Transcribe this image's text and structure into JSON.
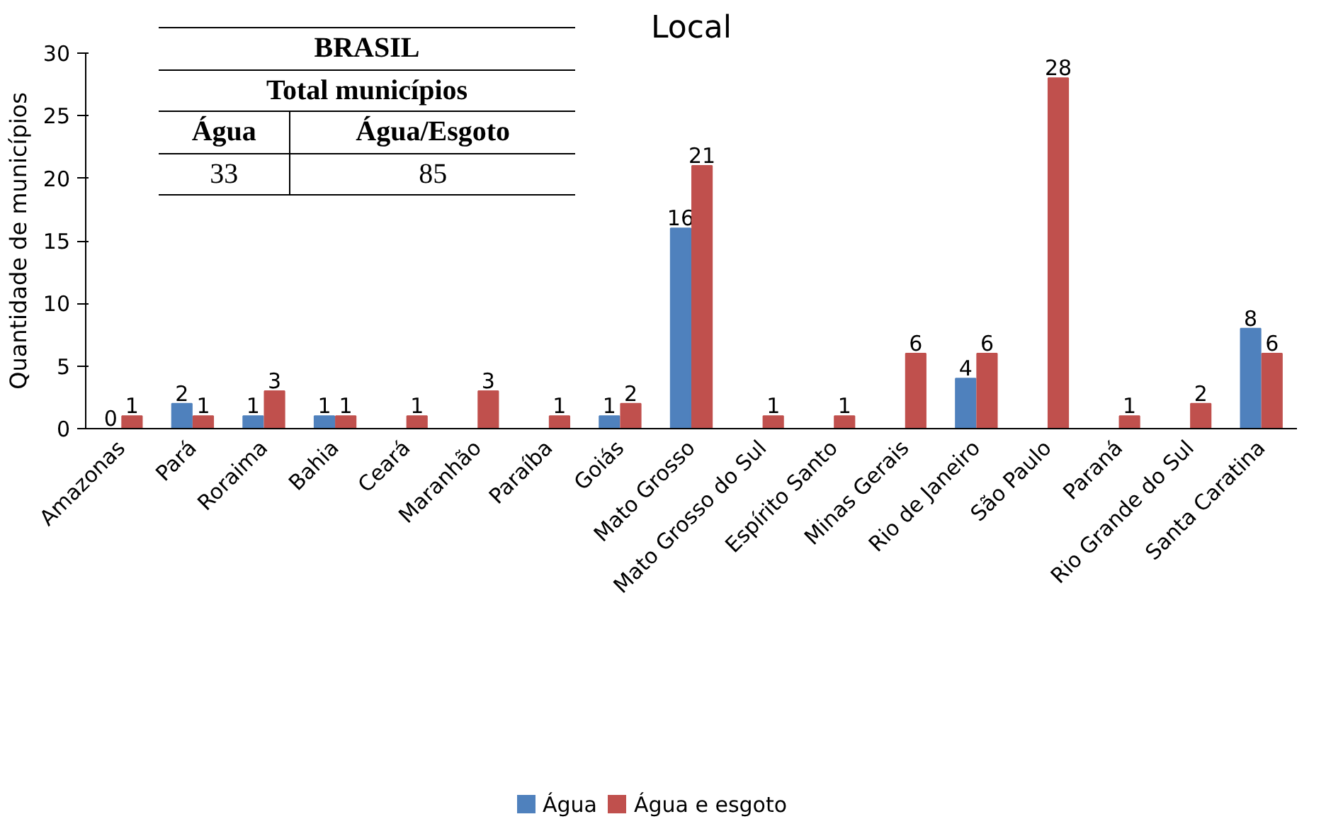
{
  "chart_data": {
    "type": "bar",
    "title": "Local",
    "ylabel": "Quantidade de municípios",
    "categories": [
      "Amazonas",
      "Pará",
      "Roraima",
      "Bahia",
      "Ceará",
      "Maranhão",
      "Paraíba",
      "Goiás",
      "Mato Grosso",
      "Mato Grosso do Sul",
      "Espírito Santo",
      "Minas Gerais",
      "Rio de Janeiro",
      "São Paulo",
      "Paraná",
      "Rio Grande do Sul",
      "Santa Caratina"
    ],
    "series": [
      {
        "name": "Água",
        "color": "#4f81bd",
        "values": [
          0,
          2,
          1,
          1,
          null,
          null,
          null,
          1,
          16,
          null,
          null,
          null,
          4,
          null,
          null,
          null,
          8
        ],
        "value_labels": [
          "0",
          "2",
          "1",
          "1",
          null,
          null,
          null,
          "1",
          "16",
          null,
          null,
          null,
          "4",
          null,
          null,
          null,
          "8"
        ]
      },
      {
        "name": "Água e esgoto",
        "color": "#c0504d",
        "values": [
          1,
          1,
          3,
          1,
          1,
          3,
          1,
          2,
          21,
          1,
          1,
          6,
          6,
          28,
          1,
          2,
          6
        ],
        "value_labels": [
          "1",
          "1",
          "3",
          "1",
          "1",
          "3",
          "1",
          "2",
          "21",
          "1",
          "1",
          "6",
          "6",
          "28",
          "1",
          "2",
          "6"
        ]
      }
    ],
    "ylim": [
      0,
      30
    ],
    "yticks": [
      0,
      5,
      10,
      15,
      20,
      25,
      30
    ],
    "legend": "bottom",
    "annotations": [
      "BRASIL",
      "Total municípios",
      "Água",
      "Água/Esgoto",
      "33",
      "85"
    ]
  }
}
